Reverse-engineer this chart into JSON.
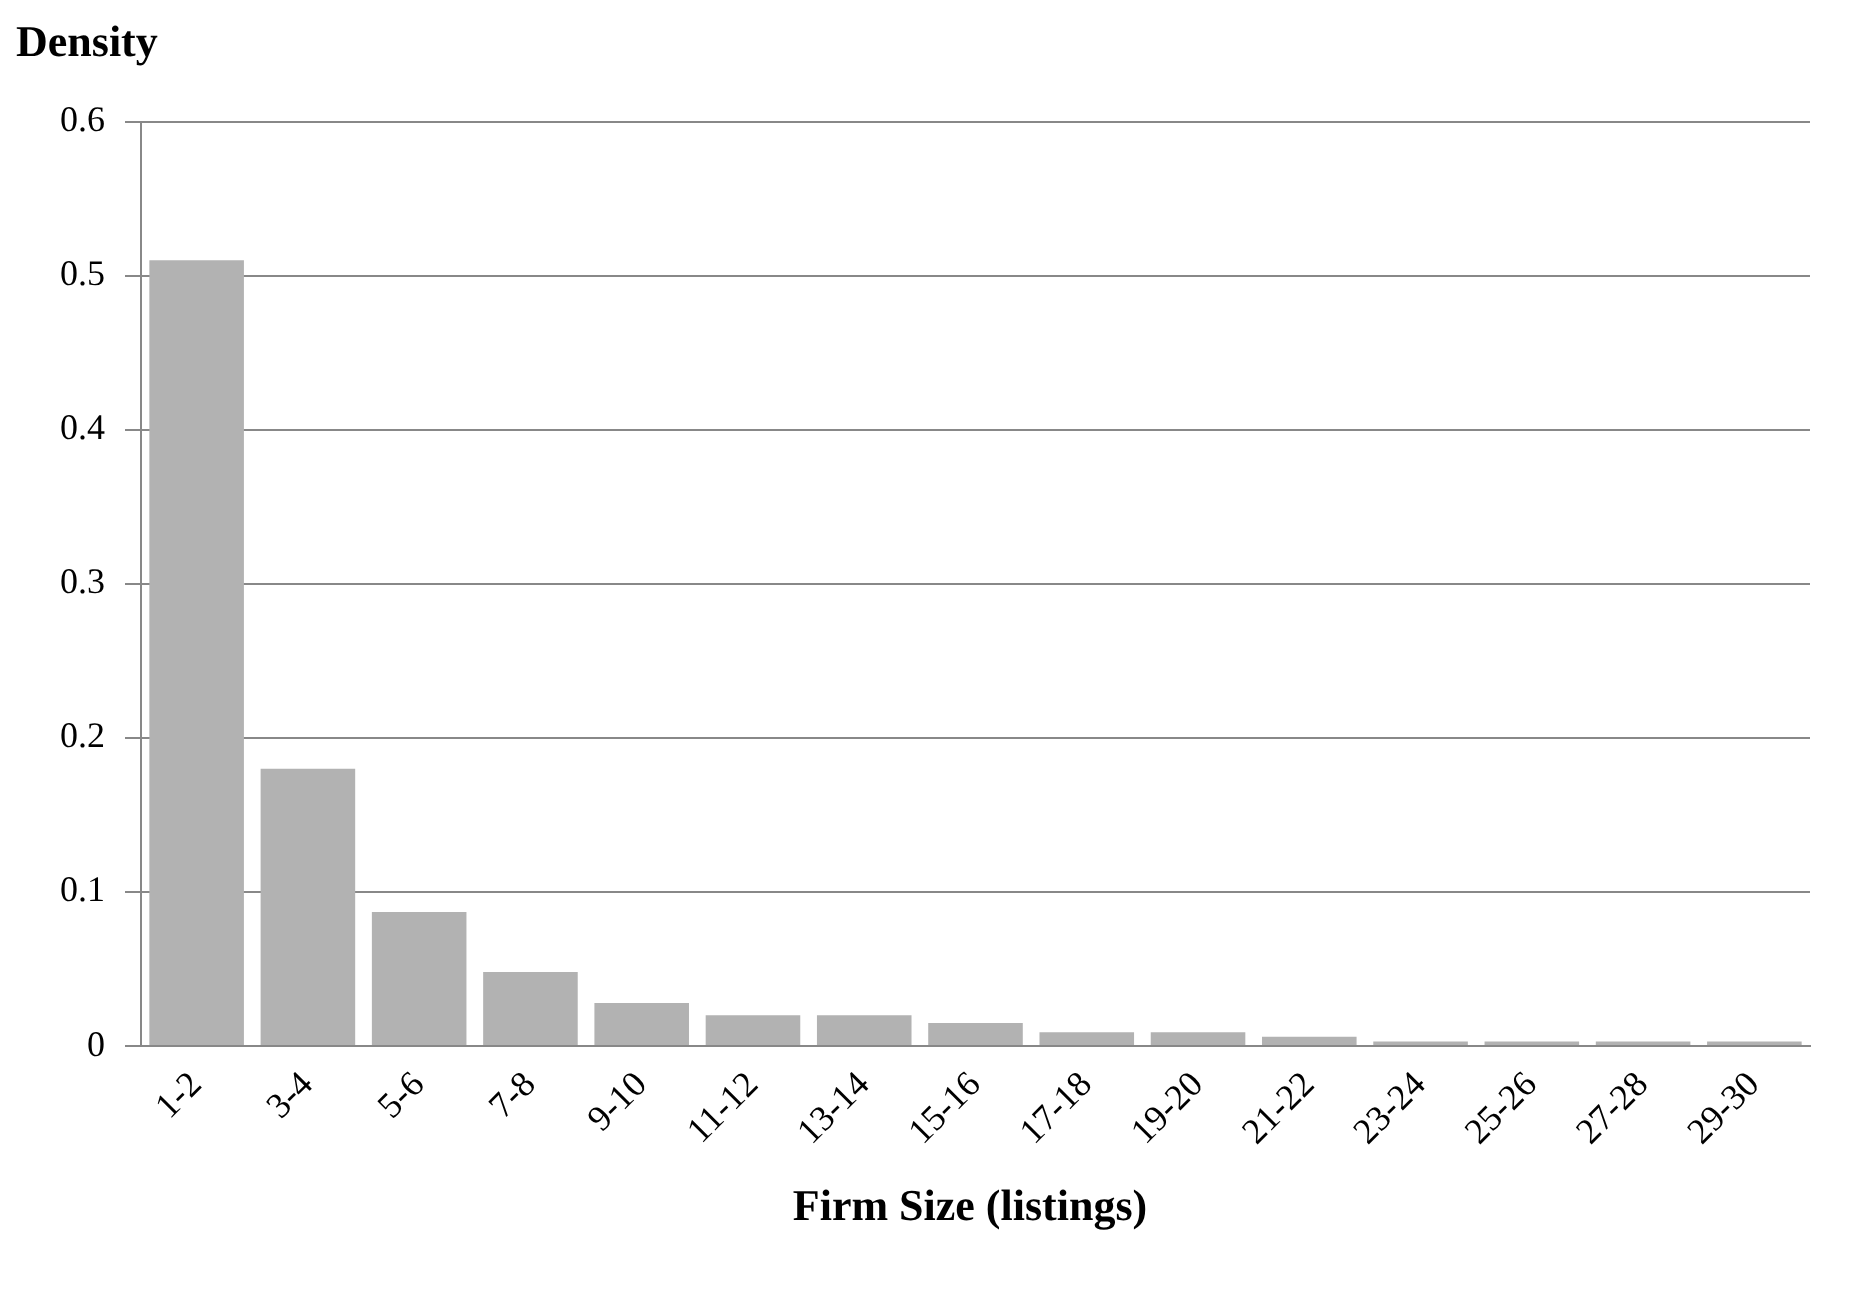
{
  "chart_data": {
    "type": "bar",
    "xlabel": "Firm Size (listings)",
    "ylabel": "Density",
    "categories": [
      "1-2",
      "3-4",
      "5-6",
      "7-8",
      "9-10",
      "11-12",
      "13-14",
      "15-16",
      "17-18",
      "19-20",
      "21-22",
      "23-24",
      "25-26",
      "27-28",
      "29-30"
    ],
    "values": [
      0.51,
      0.18,
      0.087,
      0.048,
      0.028,
      0.02,
      0.02,
      0.015,
      0.009,
      0.009,
      0.006,
      0.003,
      0.003,
      0.003,
      0.003
    ],
    "color": "#b2b2b2",
    "ylim": [
      0,
      0.6
    ],
    "yticks": [
      0,
      0.1,
      0.2,
      0.3,
      0.4,
      0.5,
      0.6
    ],
    "grid": "y",
    "legend": false
  }
}
